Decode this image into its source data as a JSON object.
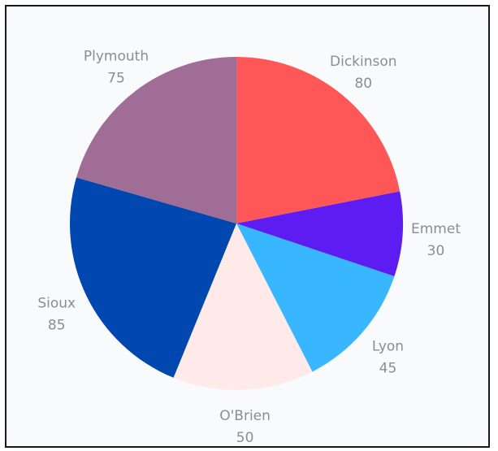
{
  "chart_data": {
    "type": "pie",
    "title": "",
    "start_angle": "12 o'clock",
    "direction": "clockwise",
    "legend": "none",
    "slices": [
      {
        "label": "Dickinson",
        "value": 80,
        "color": "#ff5757"
      },
      {
        "label": "Emmet",
        "value": 30,
        "color": "#5c1cf2"
      },
      {
        "label": "Lyon",
        "value": 45,
        "color": "#38b6ff"
      },
      {
        "label": "O'Brien",
        "value": 50,
        "color": "#ffeaea"
      },
      {
        "label": "Sioux",
        "value": 85,
        "color": "#0048b0"
      },
      {
        "label": "Plymouth",
        "value": 75,
        "color": "#a06d96"
      }
    ]
  }
}
